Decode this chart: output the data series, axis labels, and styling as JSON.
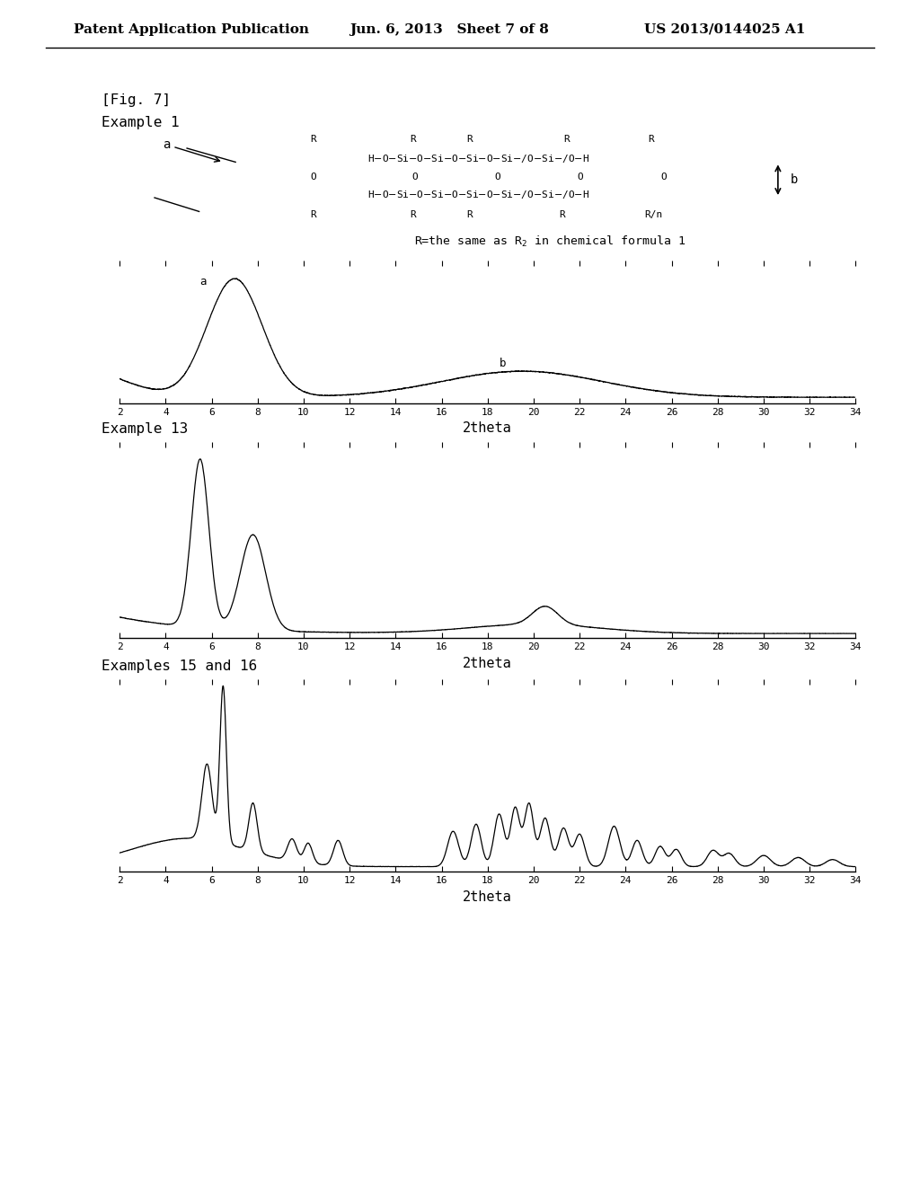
{
  "header_left": "Patent Application Publication",
  "header_mid": "Jun. 6, 2013   Sheet 7 of 8",
  "header_right": "US 2013/0144025 A1",
  "fig_label": "[Fig. 7]",
  "example1_label": "Example 1",
  "example13_label": "Example 13",
  "example1516_label": "Examples 15 and 16",
  "xlabel": "2theta",
  "bg_color": "#ffffff",
  "line_color": "#000000"
}
